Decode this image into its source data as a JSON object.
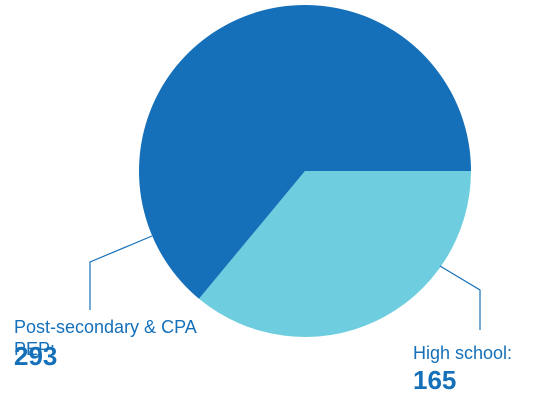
{
  "chart_data": {
    "type": "pie",
    "start_angle_deg": 0,
    "direction": "clockwise",
    "slices": [
      {
        "label": "High school:",
        "value": 165,
        "color": "#6ecedf"
      },
      {
        "label": "Post-secondary & CPA PEP:",
        "value": 293,
        "color": "#1570b9"
      }
    ],
    "label_color": "#1570b9",
    "leader_color": "#1570b9"
  }
}
